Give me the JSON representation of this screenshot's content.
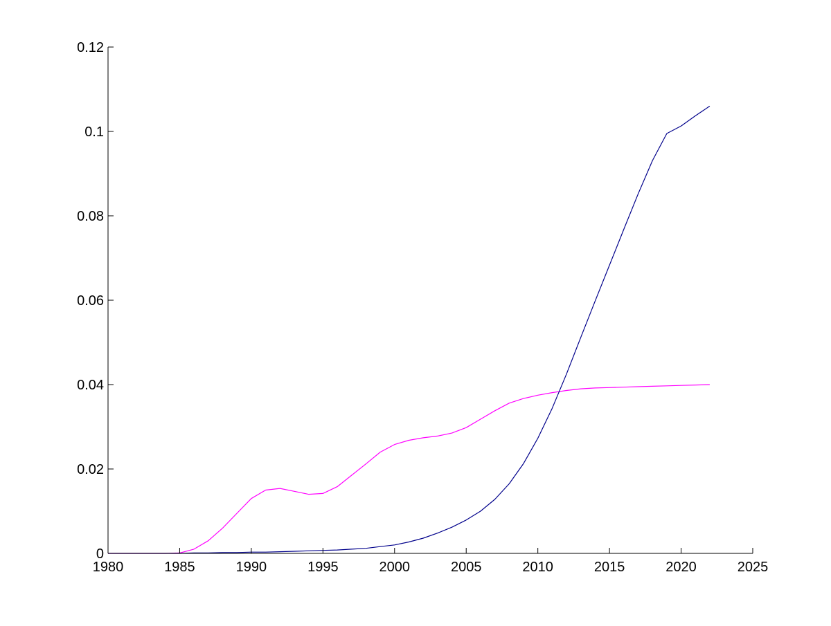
{
  "chart_data": {
    "type": "line",
    "title": "",
    "xlabel": "",
    "ylabel": "",
    "xlim": [
      1980,
      2025
    ],
    "ylim": [
      0,
      0.12
    ],
    "x_ticks": [
      1980,
      1985,
      1990,
      1995,
      2000,
      2005,
      2010,
      2015,
      2020,
      2025
    ],
    "x_tick_labels": [
      "1980",
      "1985",
      "1990",
      "1995",
      "2000",
      "2005",
      "2010",
      "2015",
      "2020",
      "2025"
    ],
    "y_ticks": [
      0,
      0.02,
      0.04,
      0.06,
      0.08,
      0.1,
      0.12
    ],
    "y_tick_labels": [
      "0",
      "0.02",
      "0.04",
      "0.06",
      "0.08",
      "0.1",
      "0.12"
    ],
    "grid": false,
    "legend": "none",
    "series": [
      {
        "color": "#ff00ff",
        "x": [
          1980,
          1981,
          1982,
          1983,
          1984,
          1985,
          1986,
          1987,
          1988,
          1989,
          1990,
          1991,
          1992,
          1993,
          1994,
          1995,
          1996,
          1997,
          1998,
          1999,
          2000,
          2001,
          2002,
          2003,
          2004,
          2005,
          2006,
          2007,
          2008,
          2009,
          2010,
          2011,
          2012,
          2013,
          2014,
          2015,
          2016,
          2017,
          2018,
          2019,
          2020,
          2021,
          2022
        ],
        "y": [
          0,
          0,
          0,
          0,
          0,
          0.0001,
          0.001,
          0.003,
          0.006,
          0.0095,
          0.013,
          0.015,
          0.0154,
          0.0147,
          0.014,
          0.0142,
          0.0158,
          0.0185,
          0.0212,
          0.024,
          0.0258,
          0.0268,
          0.0274,
          0.0278,
          0.0285,
          0.0298,
          0.0318,
          0.0338,
          0.0356,
          0.0367,
          0.0375,
          0.0381,
          0.0386,
          0.039,
          0.0392,
          0.0393,
          0.0394,
          0.0395,
          0.0396,
          0.0397,
          0.0398,
          0.0399,
          0.04
        ]
      },
      {
        "color": "#00008b",
        "x": [
          1980,
          1981,
          1982,
          1983,
          1984,
          1985,
          1986,
          1987,
          1988,
          1989,
          1990,
          1991,
          1992,
          1993,
          1994,
          1995,
          1996,
          1997,
          1998,
          1999,
          2000,
          2001,
          2002,
          2003,
          2004,
          2005,
          2006,
          2007,
          2008,
          2009,
          2010,
          2011,
          2012,
          2013,
          2014,
          2015,
          2016,
          2017,
          2018,
          2019,
          2020,
          2021,
          2022
        ],
        "y": [
          0,
          0,
          0,
          0,
          0,
          0,
          0.0001,
          0.0001,
          0.0002,
          0.0002,
          0.0003,
          0.0003,
          0.0004,
          0.0005,
          0.0006,
          0.0007,
          0.0008,
          0.001,
          0.0012,
          0.0016,
          0.002,
          0.0027,
          0.0036,
          0.0048,
          0.0062,
          0.0079,
          0.01,
          0.0128,
          0.0165,
          0.0213,
          0.0273,
          0.0344,
          0.0425,
          0.0512,
          0.0598,
          0.0683,
          0.0768,
          0.0852,
          0.0931,
          0.0995,
          0.1013,
          0.1037,
          0.106
        ]
      }
    ]
  }
}
